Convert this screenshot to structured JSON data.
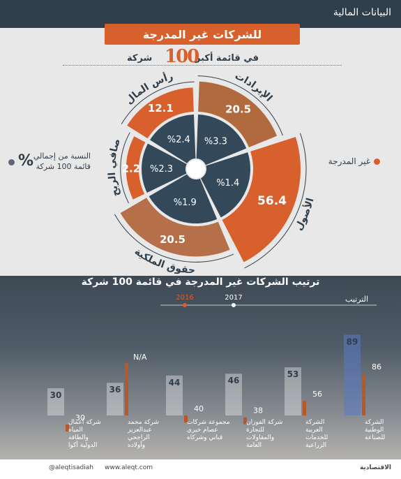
{
  "header": {
    "section_title": "البيانات المالية",
    "banner_title": "للشركات غير المدرجة",
    "subtitle_before": "في قائمة أكبر",
    "subtitle_logo": "100",
    "subtitle_after": "شركة"
  },
  "legend": {
    "unlisted": "غير المدرجة",
    "percent_symbol": "%",
    "percent_label": "النسبة من إجمالي قائمة 100 شركة"
  },
  "colors": {
    "orange": "#d8602d",
    "navy": "#33495a",
    "darkbar": "#2f3e4b"
  },
  "chart_data": [
    {
      "type": "pie",
      "subtype": "polar-area",
      "series_name": "غير المدرجة",
      "categories": [
        "الإيرادات",
        "الأصول",
        "حقوق الملكية",
        "صافي الربح",
        "رأس المال"
      ],
      "values": [
        20.5,
        56.4,
        20.5,
        2.2,
        12.1
      ],
      "value_labels": [
        "20.5",
        "56.4",
        "20.5",
        "2.2",
        "12.1"
      ],
      "percent_of_total": [
        3.3,
        1.4,
        1.9,
        2.3,
        2.4
      ],
      "percent_labels": [
        "%3.3",
        "%1.4",
        "%1.9",
        "%2.3",
        "%2.4"
      ]
    },
    {
      "type": "bar",
      "title": "ترتيب الشركات غير المدرجة في قائمة 100 شركة",
      "ylabel": "الترتيب",
      "series": [
        {
          "name": "2016",
          "values": [
            89,
            53,
            46,
            44,
            36,
            30
          ]
        },
        {
          "name": "2017",
          "values": [
            86,
            56,
            38,
            40,
            null,
            30
          ]
        }
      ],
      "value_labels_2016": [
        "89",
        "53",
        "46",
        "44",
        "36",
        "30"
      ],
      "value_labels_2017": [
        "86",
        "56",
        "38",
        "40",
        "N/A",
        "30"
      ],
      "categories": [
        "الشركة الوطنية للصناعة",
        "الشركة العربية للخدمات الزراعية أراسكو",
        "شركة الفوزان للتجارة والمقاولات العامة",
        "مجموعة شركات عصام خيري قباني وشركاه",
        "شركة محمد عبدالعزيز الراجحي وأولاده للاستثمار",
        "شركة أعمال المياه والطاقة الدولية أكوا باور"
      ]
    }
  ],
  "footer": {
    "handle": "@aleqtisadiah",
    "website": "www.aleqt.com",
    "brand": "الاقتصادية"
  }
}
